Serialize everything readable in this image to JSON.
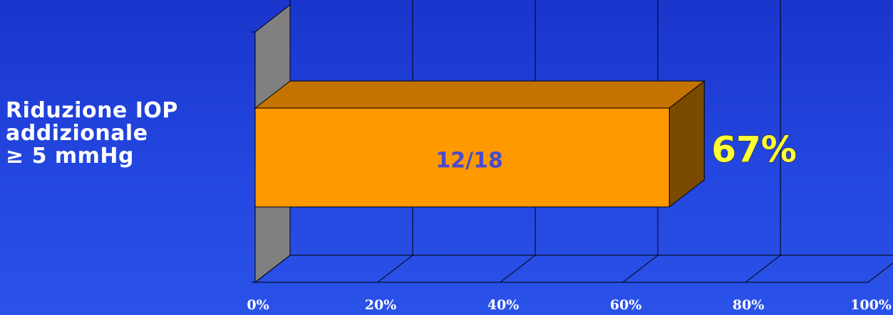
{
  "chart_data": {
    "type": "bar",
    "orientation": "horizontal",
    "three_d": true,
    "categories": [
      "Riduzione IOP addizionale ≥ 5 mmHg"
    ],
    "category_label_lines": [
      "Riduzione IOP",
      "addizionale",
      "≥  5 mmHg"
    ],
    "values": [
      67
    ],
    "inner_labels": [
      "12/18"
    ],
    "data_labels": [
      "67%"
    ],
    "x_ticks": [
      "0%",
      "20%",
      "40%",
      "60%",
      "80%",
      "100%"
    ],
    "xlim": [
      0,
      100
    ],
    "grid": true,
    "legend": "none",
    "title": "",
    "xlabel": "",
    "ylabel": ""
  },
  "colors": {
    "background": "#1f3fd8",
    "bar_front": "#ff9900",
    "bar_top": "#c47300",
    "bar_side": "#7a4a00",
    "wall_side": "#808080",
    "inner_label": "#4a4acc",
    "outer_label": "#ffff33",
    "grid": "#000000",
    "text": "#ffffff"
  }
}
